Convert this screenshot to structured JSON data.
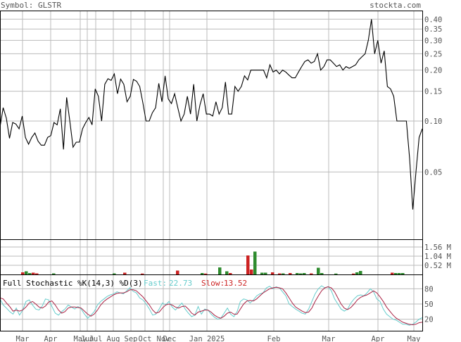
{
  "header": {
    "symbol": "Symbol: GLSTR",
    "site": "stockta.com"
  },
  "colors": {
    "grid": "#bbbbbb",
    "frame": "#000000",
    "text": "#555555",
    "vol_up": "#2e8b2e",
    "vol_down": "#cc2222",
    "fast": "#66cccc",
    "slow": "#aa2244",
    "fast_label": "#66cccc",
    "slow_label": "#cc2222"
  },
  "months": [
    "Mar",
    "Apr",
    "May",
    "Jun",
    "Jul",
    "Aug",
    "Sep",
    "Oct",
    "Nov",
    "Dec",
    "Jan 2025",
    "Feb",
    "Mar",
    "Apr",
    "May"
  ],
  "chart_data": [
    {
      "type": "line",
      "name": "price",
      "yscale": "log",
      "ylim": [
        0.02,
        0.45
      ],
      "y_ticks": [
        0.4,
        0.35,
        0.3,
        0.25,
        0.2,
        0.15,
        0.1,
        0.05
      ],
      "y_tick_labels": [
        "0.40",
        "0.35",
        "0.30",
        "0.25",
        "0.20",
        "0.15",
        "0.10",
        "0.05"
      ],
      "series": [
        {
          "values": [
            0.092,
            0.12,
            0.104,
            0.079,
            0.098,
            0.096,
            0.09,
            0.107,
            0.08,
            0.073,
            0.08,
            0.085,
            0.076,
            0.072,
            0.072,
            0.08,
            0.082,
            0.098,
            0.095,
            0.118,
            0.068,
            0.138,
            0.1,
            0.07,
            0.075,
            0.075,
            0.09,
            0.098,
            0.105,
            0.095,
            0.155,
            0.14,
            0.1,
            0.165,
            0.178,
            0.174,
            0.19,
            0.145,
            0.177,
            0.165,
            0.13,
            0.14,
            0.176,
            0.172,
            0.16,
            0.128,
            0.1,
            0.1,
            0.112,
            0.12,
            0.167,
            0.13,
            0.185,
            0.135,
            0.127,
            0.145,
            0.12,
            0.1,
            0.11,
            0.14,
            0.11,
            0.165,
            0.1,
            0.125,
            0.145,
            0.11,
            0.11,
            0.107,
            0.13,
            0.11,
            0.12,
            0.17,
            0.11,
            0.11,
            0.16,
            0.15,
            0.16,
            0.185,
            0.175,
            0.2,
            0.2,
            0.2,
            0.2,
            0.2,
            0.18,
            0.215,
            0.195,
            0.2,
            0.19,
            0.2,
            0.195,
            0.187,
            0.18,
            0.18,
            0.195,
            0.21,
            0.225,
            0.23,
            0.22,
            0.225,
            0.25,
            0.2,
            0.21,
            0.23,
            0.23,
            0.22,
            0.21,
            0.215,
            0.2,
            0.21,
            0.205,
            0.21,
            0.215,
            0.23,
            0.24,
            0.25,
            0.3,
            0.4,
            0.25,
            0.3,
            0.22,
            0.26,
            0.16,
            0.155,
            0.14,
            0.1,
            0.1,
            0.1,
            0.1,
            0.06,
            0.03,
            0.05,
            0.08,
            0.09
          ]
        }
      ]
    },
    {
      "type": "bar",
      "name": "volume",
      "ylim": [
        0,
        2.0
      ],
      "y_ticks": [
        1.56,
        1.04,
        0.52
      ],
      "y_tick_labels": [
        "1.56 M",
        "1.04 M",
        "0.52 M"
      ],
      "bars": [
        [
          32,
          0.12,
          "d"
        ],
        [
          37,
          0.18,
          "u"
        ],
        [
          42,
          0.08,
          "u"
        ],
        [
          47,
          0.1,
          "d"
        ],
        [
          52,
          0.06,
          "d"
        ],
        [
          76,
          0.06,
          "u"
        ],
        [
          162,
          0.06,
          "u"
        ],
        [
          177,
          0.1,
          "d"
        ],
        [
          202,
          0.05,
          "d"
        ],
        [
          252,
          0.22,
          "d"
        ],
        [
          287,
          0.08,
          "u"
        ],
        [
          292,
          0.05,
          "d"
        ],
        [
          312,
          0.4,
          "u"
        ],
        [
          322,
          0.18,
          "u"
        ],
        [
          327,
          0.08,
          "d"
        ],
        [
          352,
          1.08,
          "d"
        ],
        [
          357,
          0.28,
          "d"
        ],
        [
          362,
          1.3,
          "u"
        ],
        [
          372,
          0.1,
          "u"
        ],
        [
          377,
          0.1,
          "u"
        ],
        [
          387,
          0.12,
          "d"
        ],
        [
          397,
          0.06,
          "d"
        ],
        [
          402,
          0.06,
          "u"
        ],
        [
          412,
          0.08,
          "d"
        ],
        [
          422,
          0.08,
          "u"
        ],
        [
          427,
          0.06,
          "u"
        ],
        [
          432,
          0.08,
          "u"
        ],
        [
          442,
          0.06,
          "d"
        ],
        [
          452,
          0.38,
          "u"
        ],
        [
          457,
          0.08,
          "u"
        ],
        [
          477,
          0.05,
          "u"
        ],
        [
          502,
          0.05,
          "d"
        ],
        [
          507,
          0.12,
          "u"
        ],
        [
          512,
          0.2,
          "u"
        ],
        [
          557,
          0.1,
          "d"
        ],
        [
          562,
          0.08,
          "u"
        ],
        [
          567,
          0.08,
          "u"
        ],
        [
          572,
          0.08,
          "u"
        ]
      ]
    },
    {
      "type": "line",
      "name": "stochastic",
      "title": "Full Stochastic %K(14,3) %D(3)",
      "fast_label": "Fast:",
      "fast_value": "22.73",
      "slow_label": "Slow:",
      "slow_value": "13.52",
      "ylim": [
        0,
        100
      ],
      "y_ticks": [
        80,
        50,
        20
      ],
      "y_tick_labels": [
        "80",
        "50",
        "20"
      ],
      "series": [
        {
          "name": "Fast",
          "values": [
            60,
            48,
            42,
            35,
            30,
            42,
            28,
            38,
            55,
            58,
            48,
            40,
            38,
            46,
            60,
            58,
            45,
            32,
            28,
            35,
            40,
            48,
            44,
            40,
            45,
            40,
            30,
            22,
            28,
            35,
            48,
            55,
            60,
            65,
            68,
            70,
            74,
            72,
            70,
            76,
            82,
            75,
            72,
            62,
            58,
            50,
            40,
            28,
            30,
            40,
            52,
            48,
            55,
            44,
            38,
            45,
            52,
            40,
            32,
            25,
            28,
            45,
            30,
            40,
            38,
            30,
            24,
            20,
            22,
            32,
            42,
            30,
            25,
            35,
            55,
            60,
            58,
            52,
            58,
            66,
            70,
            72,
            82,
            85,
            80,
            84,
            82,
            74,
            66,
            50,
            45,
            40,
            36,
            32,
            30,
            40,
            55,
            70,
            80,
            86,
            82,
            84,
            76,
            60,
            50,
            40,
            36,
            40,
            52,
            60,
            66,
            68,
            66,
            72,
            80,
            74,
            60,
            55,
            40,
            30,
            25,
            20,
            18,
            14,
            10,
            10,
            8,
            10,
            14,
            20,
            23
          ]
        },
        {
          "name": "Slow",
          "values": [
            62,
            60,
            52,
            45,
            36,
            38,
            36,
            38,
            44,
            52,
            55,
            50,
            44,
            42,
            46,
            54,
            56,
            48,
            38,
            32,
            35,
            42,
            44,
            44,
            43,
            42,
            36,
            30,
            26,
            30,
            38,
            48,
            55,
            60,
            64,
            68,
            71,
            72,
            72,
            74,
            78,
            78,
            76,
            70,
            64,
            56,
            48,
            38,
            32,
            34,
            42,
            48,
            50,
            48,
            44,
            42,
            45,
            46,
            40,
            32,
            28,
            34,
            36,
            38,
            38,
            34,
            28,
            24,
            22,
            26,
            32,
            34,
            30,
            30,
            40,
            50,
            56,
            57,
            56,
            60,
            66,
            72,
            76,
            80,
            82,
            83,
            82,
            80,
            72,
            62,
            52,
            44,
            40,
            36,
            33,
            34,
            42,
            55,
            66,
            76,
            82,
            84,
            82,
            74,
            62,
            50,
            42,
            39,
            43,
            50,
            58,
            63,
            66,
            68,
            72,
            76,
            72,
            64,
            55,
            44,
            36,
            28,
            22,
            18,
            14,
            12,
            10,
            9,
            10,
            13,
            14
          ]
        }
      ]
    }
  ]
}
